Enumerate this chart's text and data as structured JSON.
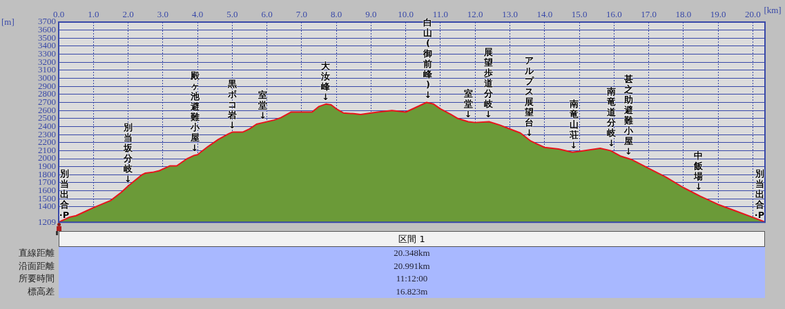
{
  "chart_data": {
    "type": "area",
    "xlabel": "[km]",
    "ylabel": "[m]",
    "xlim": [
      0,
      20.35
    ],
    "ylim": [
      1209,
      3700
    ],
    "xticks": [
      {
        "value": 0,
        "label": "0.0"
      },
      {
        "value": 1,
        "label": "1.0"
      },
      {
        "value": 2,
        "label": "2.0"
      },
      {
        "value": 3,
        "label": "3.0"
      },
      {
        "value": 4,
        "label": "4.0"
      },
      {
        "value": 5,
        "label": "5.0"
      },
      {
        "value": 6,
        "label": "6.0"
      },
      {
        "value": 7,
        "label": "7.0"
      },
      {
        "value": 8,
        "label": "8.0"
      },
      {
        "value": 9,
        "label": "9.0"
      },
      {
        "value": 10,
        "label": "10.0"
      },
      {
        "value": 11,
        "label": "11.0"
      },
      {
        "value": 12,
        "label": "12.0"
      },
      {
        "value": 13,
        "label": "13.0"
      },
      {
        "value": 14,
        "label": "14.0"
      },
      {
        "value": 15,
        "label": "15.0"
      },
      {
        "value": 16,
        "label": "16.0"
      },
      {
        "value": 17,
        "label": "17.0"
      },
      {
        "value": 18,
        "label": "18.0"
      },
      {
        "value": 19,
        "label": "19.0"
      },
      {
        "value": 20,
        "label": "20.0"
      }
    ],
    "yticks": [
      1209,
      1400,
      1500,
      1600,
      1700,
      1800,
      1900,
      2000,
      2100,
      2200,
      2300,
      2400,
      2500,
      2600,
      2700,
      2800,
      2900,
      3000,
      3100,
      3200,
      3300,
      3400,
      3500,
      3600,
      3700
    ],
    "grid": true,
    "legend": false,
    "marker": "none",
    "line_style": "solid",
    "series": [
      {
        "color": "#6b9a38",
        "x": [
          0,
          0.3,
          0.5,
          0.8,
          1.0,
          1.5,
          1.8,
          2.0,
          2.2,
          2.4,
          2.5,
          2.7,
          2.9,
          3.0,
          3.2,
          3.4,
          3.7,
          3.9,
          4.0,
          4.3,
          4.6,
          4.9,
          5.0,
          5.3,
          5.5,
          5.7,
          5.9,
          6.2,
          6.4,
          6.7,
          6.9,
          7.3,
          7.5,
          7.7,
          7.85,
          8.0,
          8.2,
          8.5,
          8.7,
          9.0,
          9.2,
          9.6,
          10.0,
          10.3,
          10.6,
          10.8,
          11.0,
          11.3,
          11.5,
          11.8,
          12.0,
          12.4,
          12.7,
          13.0,
          13.3,
          13.6,
          13.8,
          14.0,
          14.4,
          14.8,
          15.0,
          15.3,
          15.6,
          15.9,
          16.2,
          16.5,
          17.0,
          17.5,
          18.0,
          18.5,
          19.0,
          19.5,
          20.0,
          20.3,
          20.35
        ],
        "values": [
          1210,
          1270,
          1290,
          1350,
          1390,
          1480,
          1580,
          1660,
          1730,
          1800,
          1820,
          1830,
          1850,
          1870,
          1910,
          1910,
          2000,
          2040,
          2050,
          2150,
          2240,
          2310,
          2330,
          2330,
          2370,
          2430,
          2450,
          2480,
          2510,
          2580,
          2580,
          2580,
          2650,
          2680,
          2670,
          2620,
          2570,
          2560,
          2550,
          2570,
          2580,
          2600,
          2580,
          2640,
          2700,
          2680,
          2620,
          2550,
          2500,
          2460,
          2450,
          2460,
          2420,
          2370,
          2320,
          2220,
          2180,
          2140,
          2120,
          2080,
          2090,
          2110,
          2130,
          2100,
          2030,
          1990,
          1880,
          1770,
          1640,
          1530,
          1430,
          1350,
          1270,
          1220,
          1210
        ]
      }
    ],
    "annotations": [
      {
        "text": "別当出合·P",
        "x": 0,
        "y": 1210
      },
      {
        "text": "別当坂分岐↓",
        "x": 2.0,
        "y": 1660
      },
      {
        "text": "殿ヶ池避難小屋↓",
        "x": 3.92,
        "y": 2040
      },
      {
        "text": "黒ボコ岩↓",
        "x": 5.0,
        "y": 2330
      },
      {
        "text": "室堂↓",
        "x": 5.88,
        "y": 2450
      },
      {
        "text": "大汝峰↓",
        "x": 7.69,
        "y": 2680
      },
      {
        "text": "白山(御前峰)↓",
        "x": 10.64,
        "y": 2700
      },
      {
        "text": "室堂↓",
        "x": 11.8,
        "y": 2460
      },
      {
        "text": "展望歩道分岐↓",
        "x": 12.38,
        "y": 2460
      },
      {
        "text": "アルプス展望台↓",
        "x": 13.56,
        "y": 2230
      },
      {
        "text": "南竜山荘↓",
        "x": 14.84,
        "y": 2080
      },
      {
        "text": "南竜道分岐↓",
        "x": 15.93,
        "y": 2100
      },
      {
        "text": "甚之助避難小屋↓",
        "x": 16.42,
        "y": 2000
      },
      {
        "text": "中飯場↓",
        "x": 18.44,
        "y": 1560
      },
      {
        "text": "別当出合·P",
        "x": 20.35,
        "y": 1210
      },
      "区間 1",
      "直線距離",
      "20.348km",
      "沿面距離",
      "20.991km",
      "所要時間",
      "11:12:00",
      "標高差",
      "16.823m"
    ]
  }
}
